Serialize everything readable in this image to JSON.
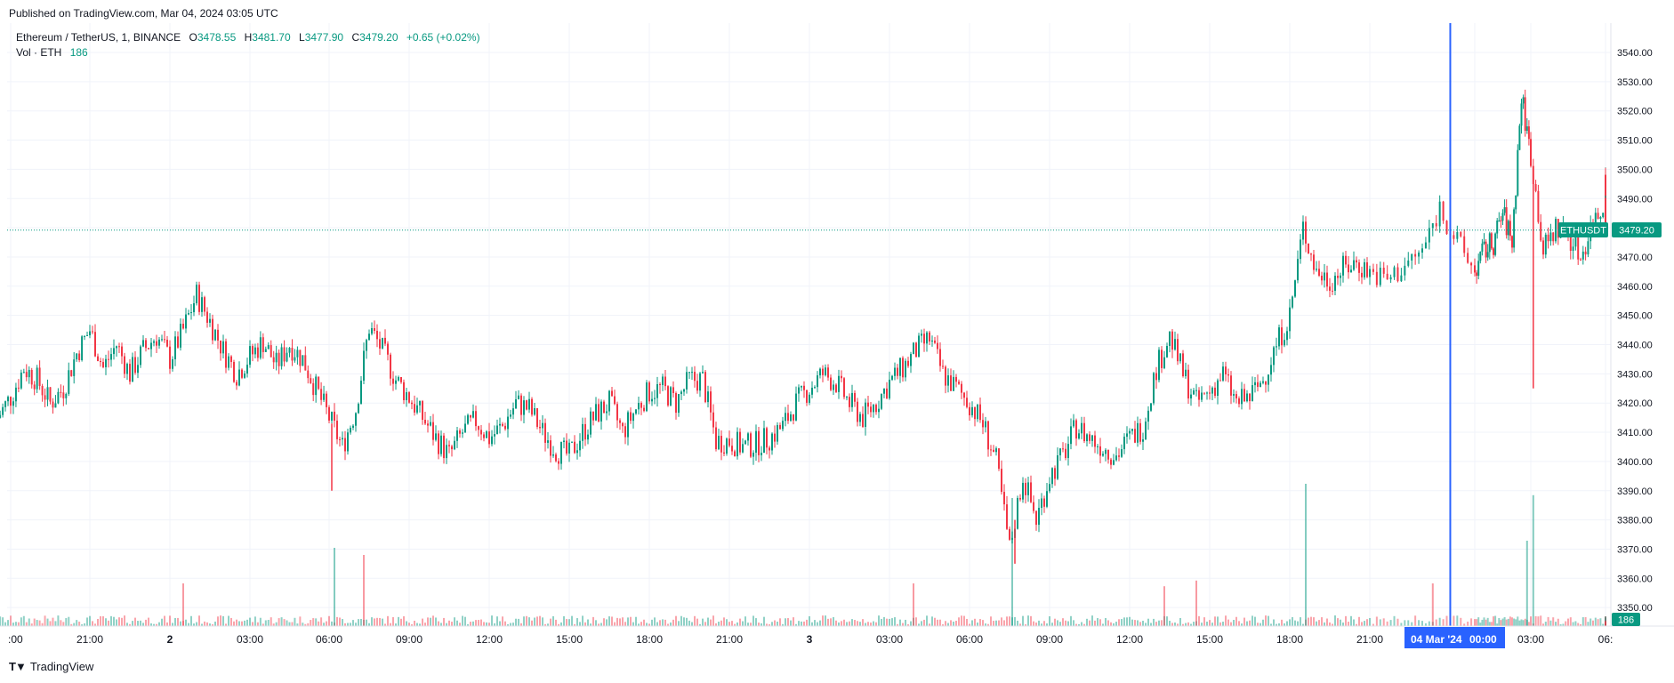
{
  "header": {
    "published": "Published on TradingView.com, Mar 04, 2024 03:05 UTC"
  },
  "legend": {
    "symbol": "Ethereum / TetherUS, 1, BINANCE",
    "o_label": "O",
    "o": "3478.55",
    "h_label": "H",
    "h": "3481.70",
    "l_label": "L",
    "l": "3477.90",
    "c_label": "C",
    "c": "3479.20",
    "change": "+0.65 (+0.02%)",
    "vol_label": "Vol · ETH",
    "vol": "186"
  },
  "price_tag": {
    "symbol": "ETHUSDT",
    "price": "3479.20"
  },
  "volume_tag": "186",
  "crosshair_label": {
    "date": "04 Mar '24",
    "time": "00:00"
  },
  "footer": {
    "brand": "TradingView"
  },
  "colors": {
    "up": "#089981",
    "down": "#f23645",
    "crosshair": "#2962ff",
    "grid": "#f0f3fa"
  },
  "chart_data": {
    "type": "candlestick",
    "symbol": "ETHUSDT",
    "interval": "1 minute",
    "ylim": [
      3340,
      3545
    ],
    "y_ticks": [
      "3540.00",
      "3530.00",
      "3520.00",
      "3510.00",
      "3500.00",
      "3490.00",
      "3480.00",
      "3470.00",
      "3460.00",
      "3450.00",
      "3440.00",
      "3430.00",
      "3420.00",
      "3410.00",
      "3400.00",
      "3390.00",
      "3380.00",
      "3370.00",
      "3360.00",
      "3350.00"
    ],
    "x_ticks": [
      ":00",
      "21:00",
      "2",
      "03:00",
      "06:00",
      "09:00",
      "12:00",
      "15:00",
      "18:00",
      "21:00",
      "3",
      "03:00",
      "06:00",
      "09:00",
      "12:00",
      "15:00",
      "18:00",
      "21:00",
      "00:00",
      "03:00",
      "06:"
    ],
    "x_tick_hours": [
      18,
      21,
      24,
      27,
      30,
      33,
      36,
      39,
      42,
      45,
      48,
      51,
      54,
      57,
      60,
      63,
      66,
      69,
      72,
      75,
      78
    ],
    "last_price": 3479.2,
    "crosshair_hour": 71.3,
    "price_path": [
      [
        17.5,
        3415
      ],
      [
        18,
        3422
      ],
      [
        18.5,
        3432
      ],
      [
        19,
        3428
      ],
      [
        19.5,
        3420
      ],
      [
        20,
        3425
      ],
      [
        20.5,
        3437
      ],
      [
        21,
        3445
      ],
      [
        21.5,
        3432
      ],
      [
        22,
        3440
      ],
      [
        22.5,
        3430
      ],
      [
        23,
        3438
      ],
      [
        23.5,
        3443
      ],
      [
        24,
        3435
      ],
      [
        24.5,
        3445
      ],
      [
        25,
        3457
      ],
      [
        25.5,
        3448
      ],
      [
        26,
        3438
      ],
      [
        26.5,
        3430
      ],
      [
        27,
        3436
      ],
      [
        27.5,
        3441
      ],
      [
        28,
        3433
      ],
      [
        28.5,
        3440
      ],
      [
        29,
        3435
      ],
      [
        29.5,
        3425
      ],
      [
        30,
        3415
      ],
      [
        30.5,
        3405
      ],
      [
        31,
        3418
      ],
      [
        31.5,
        3446
      ],
      [
        32,
        3438
      ],
      [
        32.5,
        3428
      ],
      [
        33,
        3422
      ],
      [
        33.5,
        3415
      ],
      [
        34,
        3408
      ],
      [
        34.5,
        3402
      ],
      [
        35,
        3410
      ],
      [
        35.5,
        3414
      ],
      [
        36,
        3408
      ],
      [
        36.5,
        3412
      ],
      [
        37,
        3420
      ],
      [
        37.5,
        3418
      ],
      [
        38,
        3410
      ],
      [
        38.5,
        3404
      ],
      [
        39,
        3402
      ],
      [
        39.5,
        3410
      ],
      [
        40,
        3416
      ],
      [
        40.5,
        3420
      ],
      [
        41,
        3410
      ],
      [
        41.5,
        3418
      ],
      [
        42,
        3424
      ],
      [
        42.5,
        3425
      ],
      [
        43,
        3420
      ],
      [
        43.5,
        3428
      ],
      [
        44,
        3428
      ],
      [
        44.5,
        3407
      ],
      [
        45,
        3407
      ],
      [
        45.5,
        3405
      ],
      [
        46,
        3406
      ],
      [
        46.5,
        3408
      ],
      [
        47,
        3412
      ],
      [
        47.5,
        3420
      ],
      [
        48,
        3425
      ],
      [
        48.5,
        3430
      ],
      [
        49,
        3427
      ],
      [
        49.5,
        3420
      ],
      [
        50,
        3415
      ],
      [
        50.5,
        3420
      ],
      [
        51,
        3427
      ],
      [
        51.5,
        3432
      ],
      [
        52,
        3438
      ],
      [
        52.5,
        3442
      ],
      [
        53,
        3430
      ],
      [
        53.5,
        3425
      ],
      [
        54,
        3420
      ],
      [
        54.5,
        3413
      ],
      [
        55,
        3400
      ],
      [
        55.5,
        3370
      ],
      [
        56,
        3395
      ],
      [
        56.5,
        3380
      ],
      [
        57,
        3395
      ],
      [
        57.5,
        3402
      ],
      [
        58,
        3412
      ],
      [
        58.5,
        3408
      ],
      [
        59,
        3405
      ],
      [
        59.5,
        3402
      ],
      [
        60,
        3408
      ],
      [
        60.5,
        3412
      ],
      [
        61,
        3432
      ],
      [
        61.5,
        3443
      ],
      [
        62,
        3430
      ],
      [
        62.5,
        3420
      ],
      [
        63,
        3424
      ],
      [
        63.5,
        3430
      ],
      [
        64,
        3420
      ],
      [
        64.5,
        3422
      ],
      [
        65,
        3428
      ],
      [
        65.5,
        3440
      ],
      [
        66,
        3450
      ],
      [
        66.5,
        3480
      ],
      [
        67,
        3465
      ],
      [
        67.5,
        3462
      ],
      [
        68,
        3466
      ],
      [
        68.5,
        3468
      ],
      [
        69,
        3465
      ],
      [
        69.5,
        3462
      ],
      [
        70,
        3467
      ],
      [
        70.5,
        3472
      ],
      [
        71,
        3487
      ],
      [
        71.5,
        3475
      ],
      [
        72,
        3465
      ],
      [
        72.5,
        3472
      ],
      [
        73,
        3475
      ],
      [
        73.5,
        3485
      ],
      [
        74,
        3475
      ],
      [
        74.5,
        3525
      ],
      [
        75,
        3505
      ],
      [
        75.5,
        3472
      ],
      [
        76,
        3480
      ],
      [
        76.5,
        3478
      ],
      [
        77,
        3470
      ],
      [
        77.5,
        3482
      ],
      [
        78,
        3488
      ],
      [
        78.5,
        3496
      ],
      [
        79,
        3479.2
      ]
    ],
    "spikes": [
      {
        "hour": 30.1,
        "low": 3390
      },
      {
        "hour": 55.7,
        "low": 3365
      },
      {
        "hour": 75.1,
        "low": 3425
      }
    ],
    "volume_spikes": [
      {
        "hour": 30.2,
        "v": 0.55
      },
      {
        "hour": 31.3,
        "v": 0.5
      },
      {
        "hour": 24.5,
        "v": 0.3
      },
      {
        "hour": 55.6,
        "v": 0.9
      },
      {
        "hour": 51.9,
        "v": 0.3
      },
      {
        "hour": 61.3,
        "v": 0.28
      },
      {
        "hour": 66.6,
        "v": 1.0
      },
      {
        "hour": 70.8,
        "v": 0.3
      },
      {
        "hour": 75.1,
        "v": 0.92
      },
      {
        "hour": 74.8,
        "v": 0.6
      },
      {
        "hour": 62.5,
        "v": 0.32
      }
    ]
  }
}
